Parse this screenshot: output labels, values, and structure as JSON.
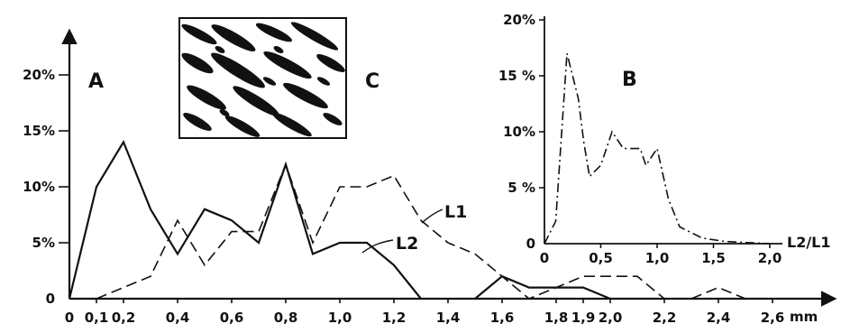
{
  "chart_data": [
    {
      "type": "line",
      "panel": "A",
      "letters": [
        "A",
        "C"
      ],
      "x_unit": "mm",
      "xlim": [
        0,
        2.6
      ],
      "ylim": [
        0,
        20
      ],
      "x_ticks": [
        {
          "v": 0,
          "t": "0"
        },
        {
          "v": 0.1,
          "t": "0,1"
        },
        {
          "v": 0.2,
          "t": "0,2"
        },
        {
          "v": 0.4,
          "t": "0,4"
        },
        {
          "v": 0.6,
          "t": "0,6"
        },
        {
          "v": 0.8,
          "t": "0,8"
        },
        {
          "v": 1.0,
          "t": "1,0"
        },
        {
          "v": 1.2,
          "t": "1,2"
        },
        {
          "v": 1.4,
          "t": "1,4"
        },
        {
          "v": 1.6,
          "t": "1,6"
        },
        {
          "v": 1.8,
          "t": "1,8"
        },
        {
          "v": 1.9,
          "t": "1,9"
        },
        {
          "v": 2.0,
          "t": "2,0"
        },
        {
          "v": 2.2,
          "t": "2,2"
        },
        {
          "v": 2.4,
          "t": "2,4"
        },
        {
          "v": 2.6,
          "t": "2,6"
        }
      ],
      "y_ticks": [
        {
          "v": 0,
          "t": "0"
        },
        {
          "v": 5,
          "t": "5%"
        },
        {
          "v": 10,
          "t": "10%"
        },
        {
          "v": 15,
          "t": "15%"
        },
        {
          "v": 20,
          "t": "20%"
        }
      ],
      "series": [
        {
          "name": "L2",
          "style": "solid",
          "points": [
            [
              0,
              0
            ],
            [
              0.1,
              10
            ],
            [
              0.2,
              14
            ],
            [
              0.3,
              8
            ],
            [
              0.4,
              4
            ],
            [
              0.5,
              8
            ],
            [
              0.6,
              7
            ],
            [
              0.7,
              5
            ],
            [
              0.8,
              12
            ],
            [
              0.9,
              4
            ],
            [
              1.0,
              5
            ],
            [
              1.1,
              5
            ],
            [
              1.2,
              3
            ],
            [
              1.3,
              0
            ]
          ],
          "points_b": [
            [
              1.5,
              0
            ],
            [
              1.6,
              2
            ],
            [
              1.7,
              1
            ],
            [
              1.8,
              1
            ],
            [
              1.9,
              1
            ],
            [
              2.0,
              0
            ]
          ]
        },
        {
          "name": "L1",
          "style": "dashed",
          "points": [
            [
              0.1,
              0
            ],
            [
              0.3,
              2
            ],
            [
              0.4,
              7
            ],
            [
              0.5,
              3
            ],
            [
              0.6,
              6
            ],
            [
              0.7,
              6
            ],
            [
              0.8,
              12
            ],
            [
              0.9,
              5
            ],
            [
              1.0,
              10
            ],
            [
              1.1,
              10
            ],
            [
              1.2,
              11
            ],
            [
              1.3,
              7
            ],
            [
              1.4,
              5
            ],
            [
              1.5,
              4
            ],
            [
              1.6,
              2
            ],
            [
              1.7,
              0
            ],
            [
              1.9,
              2
            ],
            [
              2.0,
              2
            ],
            [
              2.1,
              2
            ],
            [
              2.2,
              0
            ]
          ],
          "points_b": [
            [
              2.3,
              0
            ],
            [
              2.4,
              1
            ],
            [
              2.5,
              0
            ]
          ]
        }
      ]
    },
    {
      "type": "line",
      "panel": "B",
      "letters": [
        "B"
      ],
      "x_label": "L2/L1",
      "xlim": [
        0,
        2.0
      ],
      "ylim": [
        0,
        20
      ],
      "x_ticks": [
        {
          "v": 0,
          "t": "0"
        },
        {
          "v": 0.5,
          "t": "0,5"
        },
        {
          "v": 1.0,
          "t": "1,0"
        },
        {
          "v": 1.5,
          "t": "1,5"
        },
        {
          "v": 2.0,
          "t": "2,0"
        }
      ],
      "y_ticks": [
        {
          "v": 0,
          "t": "0"
        },
        {
          "v": 5,
          "t": "5 %"
        },
        {
          "v": 10,
          "t": "10%"
        },
        {
          "v": 15,
          "t": "15 %"
        },
        {
          "v": 20,
          "t": "20%"
        }
      ],
      "series": [
        {
          "name": "",
          "style": "dash-dot",
          "points": [
            [
              0,
              0
            ],
            [
              0.1,
              2
            ],
            [
              0.2,
              17
            ],
            [
              0.3,
              13
            ],
            [
              0.35,
              9
            ],
            [
              0.4,
              6
            ],
            [
              0.5,
              7
            ],
            [
              0.6,
              10
            ],
            [
              0.7,
              8.5
            ],
            [
              0.8,
              8.5
            ],
            [
              0.85,
              8.5
            ],
            [
              0.9,
              7
            ],
            [
              1.0,
              8.5
            ],
            [
              1.1,
              4
            ],
            [
              1.2,
              1.5
            ],
            [
              1.4,
              0.5
            ],
            [
              1.6,
              0.2
            ],
            [
              1.8,
              0.1
            ],
            [
              2.0,
              0
            ]
          ]
        }
      ]
    }
  ]
}
